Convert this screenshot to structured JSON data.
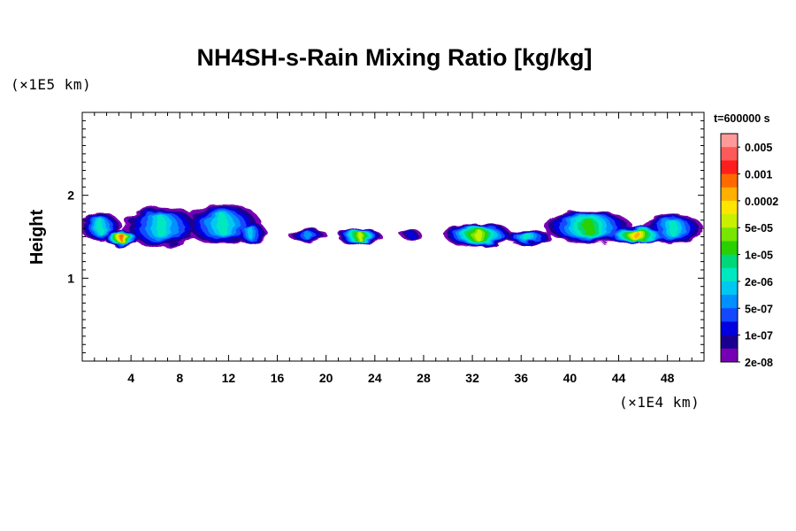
{
  "chart_data": {
    "type": "heatmap",
    "title": "NH4SH-s-Rain Mixing Ratio [kg/kg]",
    "ylabel": "Height",
    "y_unit_label": "(×1E5 km)",
    "x_unit_label": "(×1E4 km)",
    "time_label": "t=600000 s",
    "xlim": [
      0,
      51
    ],
    "ylim": [
      0,
      3
    ],
    "x_ticks": [
      4,
      8,
      12,
      16,
      20,
      24,
      28,
      32,
      36,
      40,
      44,
      48
    ],
    "y_ticks": [
      1,
      2
    ],
    "colorbar": {
      "labels": [
        "0.005",
        "0.001",
        "0.0002",
        "5e-05",
        "1e-05",
        "2e-06",
        "5e-07",
        "1e-07",
        "2e-08"
      ],
      "colors": [
        "#ff9a9a",
        "#ff5a5a",
        "#ff1e1e",
        "#ff6a00",
        "#ffb000",
        "#ffe600",
        "#c8f000",
        "#78e600",
        "#2ad000",
        "#00d878",
        "#00e8c0",
        "#00c8f0",
        "#0090ff",
        "#1448ff",
        "#0000e0",
        "#1a0090",
        "#7800b4"
      ]
    },
    "blobs": [
      {
        "x": 1.5,
        "y": 1.62,
        "rx": 1.7,
        "ry": 0.17,
        "level": 10
      },
      {
        "x": 3.3,
        "y": 1.48,
        "rx": 1.5,
        "ry": 0.09,
        "level": 3
      },
      {
        "x": 6.5,
        "y": 1.62,
        "rx": 3.2,
        "ry": 0.24,
        "level": 10
      },
      {
        "x": 11.5,
        "y": 1.65,
        "rx": 3.2,
        "ry": 0.24,
        "level": 10
      },
      {
        "x": 13.8,
        "y": 1.55,
        "rx": 1.3,
        "ry": 0.14,
        "level": 11
      },
      {
        "x": 18.5,
        "y": 1.52,
        "rx": 1.6,
        "ry": 0.08,
        "level": 12
      },
      {
        "x": 22.8,
        "y": 1.5,
        "rx": 1.8,
        "ry": 0.1,
        "level": 6
      },
      {
        "x": 27.0,
        "y": 1.52,
        "rx": 0.9,
        "ry": 0.05,
        "level": 14
      },
      {
        "x": 32.5,
        "y": 1.52,
        "rx": 2.8,
        "ry": 0.14,
        "level": 6
      },
      {
        "x": 36.5,
        "y": 1.5,
        "rx": 2.0,
        "ry": 0.09,
        "level": 10
      },
      {
        "x": 41.5,
        "y": 1.62,
        "rx": 3.6,
        "ry": 0.2,
        "level": 8
      },
      {
        "x": 45.5,
        "y": 1.52,
        "rx": 2.6,
        "ry": 0.1,
        "level": 4
      },
      {
        "x": 48.5,
        "y": 1.6,
        "rx": 2.4,
        "ry": 0.18,
        "level": 10
      }
    ]
  }
}
